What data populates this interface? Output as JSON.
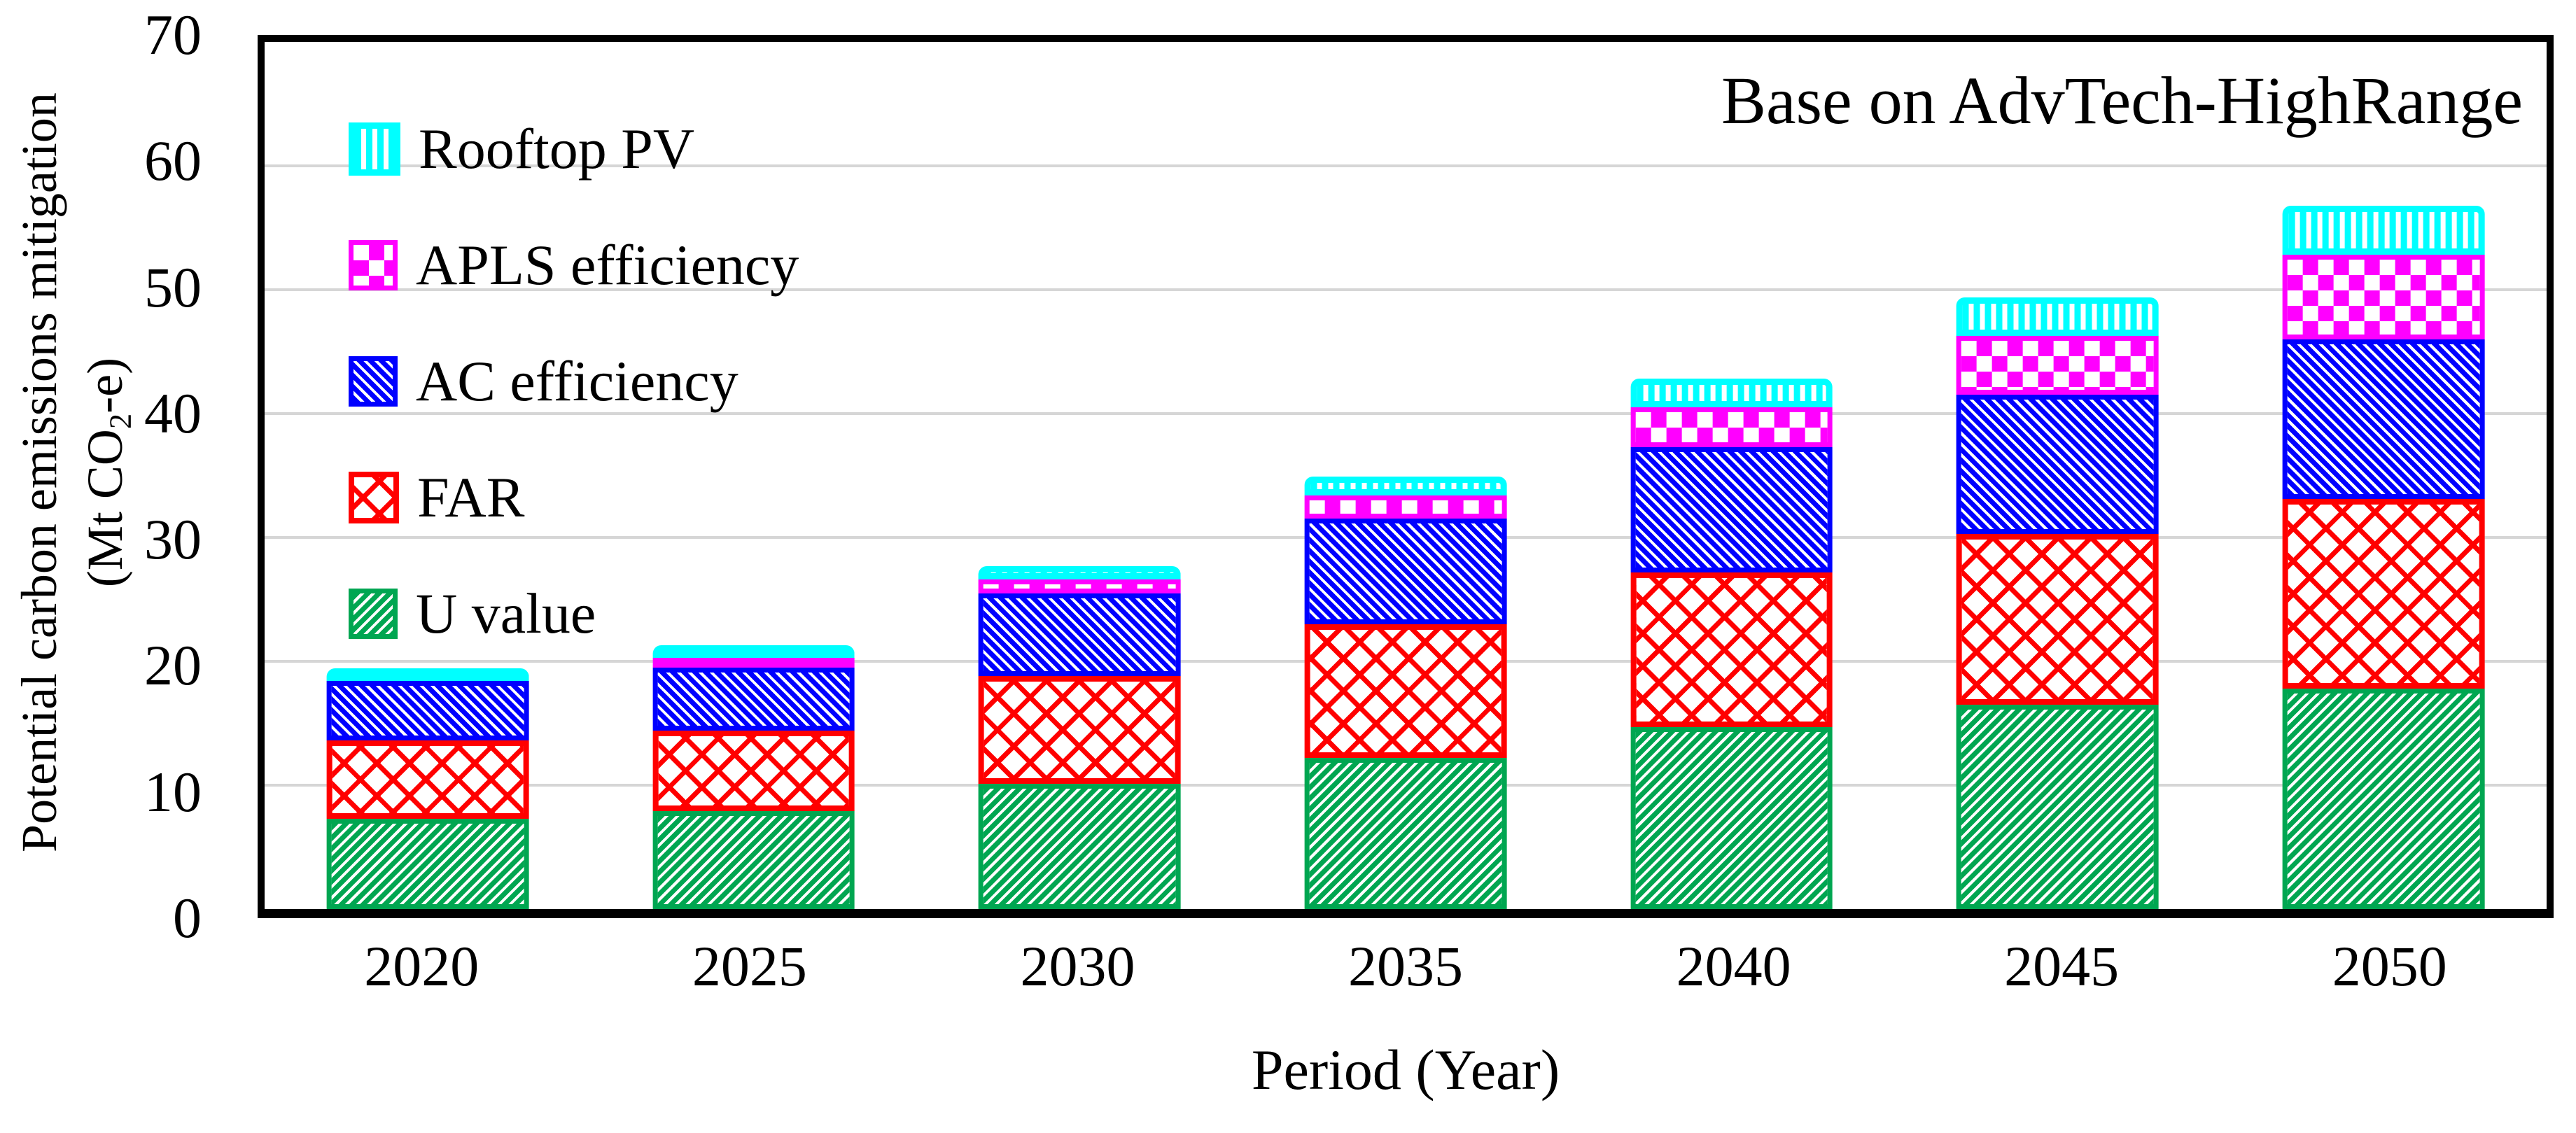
{
  "title": "Base on AdvTech-HighRange",
  "axes": {
    "x_title": "Period (Year)",
    "y_title_line1": "Potential carbon emissions mitigation",
    "y_title_line2_prefix": "(Mt CO",
    "y_title_line2_sub": "2",
    "y_title_line2_suffix": "-e)"
  },
  "chart_data": {
    "type": "bar",
    "stacked": true,
    "title": "Base on AdvTech-HighRange",
    "xlabel": "Period (Year)",
    "ylabel": "Potential carbon emissions mitigation (Mt CO2-e)",
    "categories": [
      "2020",
      "2025",
      "2030",
      "2035",
      "2040",
      "2045",
      "2050"
    ],
    "series": [
      {
        "name": "U value",
        "pattern": "u",
        "color": "#00A651",
        "values": [
          7.3,
          7.9,
          10.1,
          12.2,
          14.7,
          16.5,
          17.8
        ]
      },
      {
        "name": "FAR",
        "pattern": "far",
        "color": "#FF0000",
        "values": [
          6.3,
          6.5,
          8.7,
          10.8,
          12.5,
          13.8,
          15.3
        ]
      },
      {
        "name": "AC efficiency",
        "pattern": "ac",
        "color": "#0000FF",
        "values": [
          4.8,
          5.1,
          6.7,
          8.5,
          10.1,
          11.2,
          12.9
        ]
      },
      {
        "name": "APLS efficiency",
        "pattern": "apls",
        "color": "#FF00FF",
        "values": [
          0,
          0.6,
          1.1,
          1.9,
          3.2,
          4.8,
          6.8
        ]
      },
      {
        "name": "Rooftop PV",
        "pattern": "pv",
        "color": "#00FFFF",
        "values": [
          0.7,
          0.6,
          1.1,
          1.5,
          2.3,
          3.1,
          4.0
        ]
      }
    ],
    "totals": [
      19.1,
      20.7,
      27.7,
      34.9,
      42.8,
      49.4,
      56.8
    ],
    "ylim": [
      0,
      70
    ],
    "ytick_step": 10,
    "grid": true,
    "gridline_color": "#d6d6d6",
    "legend_position": "top-left-inside",
    "legend_order_top_to_bottom": [
      "Rooftop PV",
      "APLS efficiency",
      "AC efficiency",
      "FAR",
      "U value"
    ]
  }
}
